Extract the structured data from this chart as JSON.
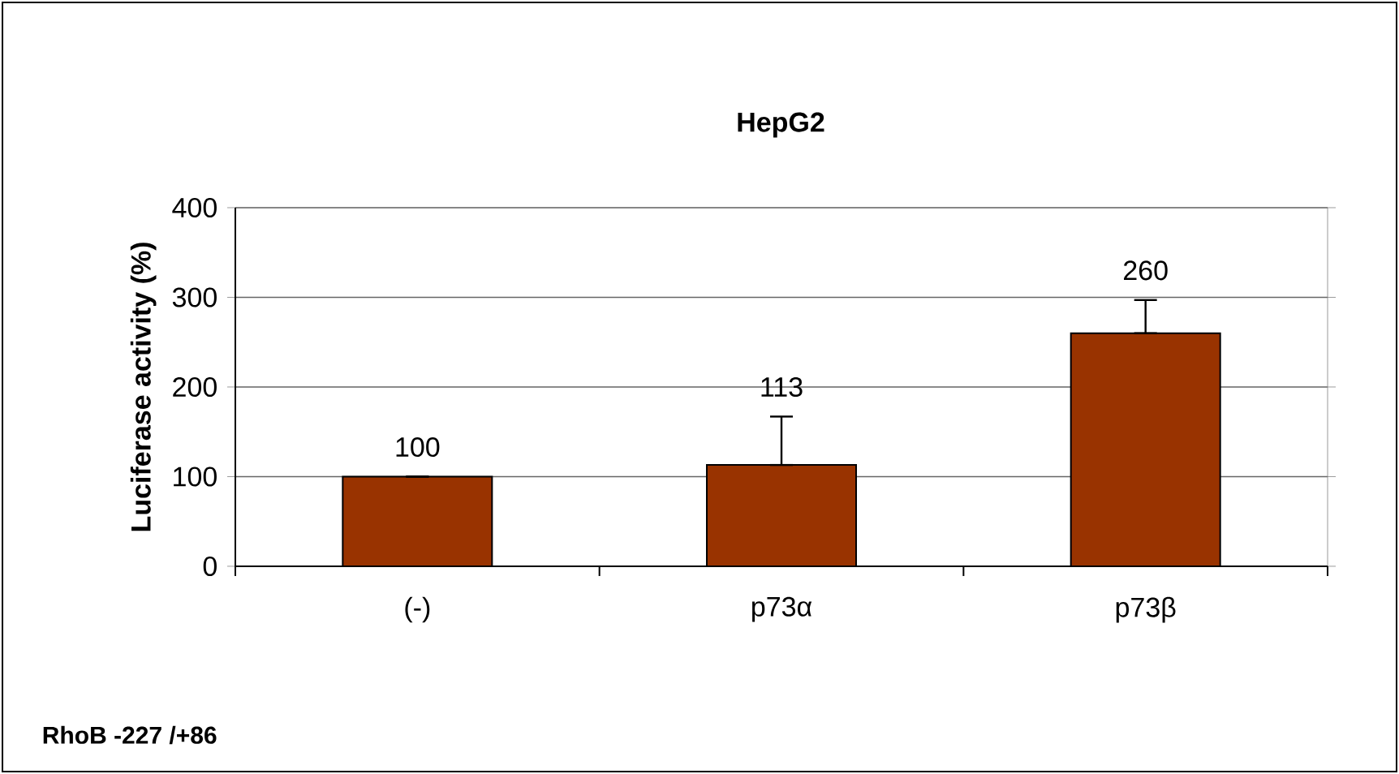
{
  "chart_data": {
    "type": "bar",
    "title": "HepG2",
    "ylabel": "Luciferase activity (%)",
    "categories": [
      "(-)",
      "p73α",
      "p73β"
    ],
    "values": [
      100,
      113,
      260
    ],
    "errors": [
      null,
      [
        113,
        167
      ],
      [
        260,
        297
      ]
    ],
    "color": "#993300",
    "data_labels": true,
    "grid": "y",
    "ylim": [
      0,
      400
    ],
    "yticks": [
      0,
      100,
      200,
      300,
      400
    ],
    "annotations": [
      "RhoB  -227 /+86"
    ]
  }
}
